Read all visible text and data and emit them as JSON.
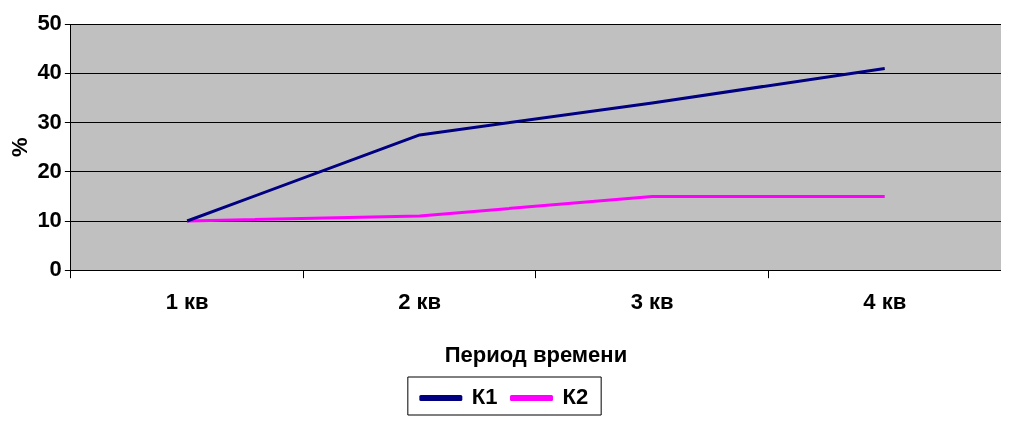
{
  "chart_data": {
    "type": "line",
    "xlabel": "Период времени",
    "ylabel": "%",
    "categories": [
      "1 кв",
      "2 кв",
      "3 кв",
      "4 кв"
    ],
    "series": [
      {
        "name": "К1",
        "color": "#000080",
        "values": [
          10,
          27.5,
          34,
          41
        ]
      },
      {
        "name": "К2",
        "color": "#ff00ff",
        "values": [
          10,
          11,
          15,
          15
        ]
      }
    ],
    "ylim": [
      0,
      50
    ],
    "yticks": [
      0,
      10,
      20,
      30,
      40,
      50
    ],
    "grid": "y",
    "legend": "bottom",
    "marker": "none",
    "line_style": "solid"
  }
}
